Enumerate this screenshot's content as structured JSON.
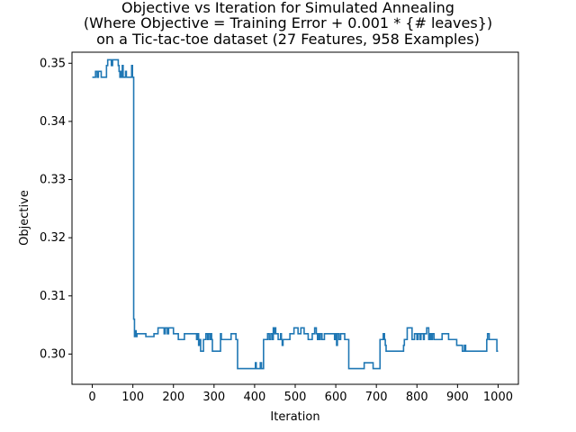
{
  "chart_data": {
    "type": "line",
    "title_lines": [
      "Objective vs Iteration for Simulated Annealing",
      "(Where Objective = Training Error + 0.001 * {# leaves})",
      "on a Tic-tac-toe dataset (27 Features, 958 Examples)"
    ],
    "xlabel": "Iteration",
    "ylabel": "Objective",
    "xlim": [
      -50,
      1050
    ],
    "ylim": [
      0.2948,
      0.3519
    ],
    "xticks": [
      0,
      100,
      200,
      300,
      400,
      500,
      600,
      700,
      800,
      900,
      1000
    ],
    "yticks": [
      0.3,
      0.31,
      0.32,
      0.33,
      0.34,
      0.35
    ],
    "ytick_labels": [
      "0.30",
      "0.31",
      "0.32",
      "0.33",
      "0.34",
      "0.35"
    ],
    "grid": false,
    "line_color": "#1f77b4",
    "series": [
      {
        "points": [
          [
            0,
            0.3476
          ],
          [
            5,
            0.3476
          ],
          [
            8,
            0.3486
          ],
          [
            12,
            0.3476
          ],
          [
            15,
            0.3486
          ],
          [
            20,
            0.3486
          ],
          [
            22,
            0.3476
          ],
          [
            33,
            0.3476
          ],
          [
            35,
            0.3496
          ],
          [
            38,
            0.3506
          ],
          [
            45,
            0.3506
          ],
          [
            47,
            0.3496
          ],
          [
            50,
            0.3506
          ],
          [
            62,
            0.3506
          ],
          [
            64,
            0.3496
          ],
          [
            66,
            0.3486
          ],
          [
            68,
            0.3476
          ],
          [
            70,
            0.3486
          ],
          [
            72,
            0.3476
          ],
          [
            74,
            0.3496
          ],
          [
            76,
            0.3476
          ],
          [
            80,
            0.3476
          ],
          [
            82,
            0.3486
          ],
          [
            84,
            0.3476
          ],
          [
            95,
            0.3476
          ],
          [
            97,
            0.3496
          ],
          [
            99,
            0.3476
          ],
          [
            101,
            0.3476
          ],
          [
            102,
            0.306
          ],
          [
            104,
            0.303
          ],
          [
            106,
            0.304
          ],
          [
            108,
            0.303
          ],
          [
            110,
            0.3035
          ],
          [
            130,
            0.3035
          ],
          [
            132,
            0.303
          ],
          [
            150,
            0.303
          ],
          [
            152,
            0.3035
          ],
          [
            160,
            0.3035
          ],
          [
            162,
            0.3045
          ],
          [
            175,
            0.3045
          ],
          [
            177,
            0.3035
          ],
          [
            180,
            0.3045
          ],
          [
            185,
            0.3035
          ],
          [
            188,
            0.3045
          ],
          [
            198,
            0.3045
          ],
          [
            200,
            0.3035
          ],
          [
            210,
            0.3035
          ],
          [
            212,
            0.3025
          ],
          [
            225,
            0.3025
          ],
          [
            227,
            0.3035
          ],
          [
            255,
            0.3035
          ],
          [
            257,
            0.3025
          ],
          [
            260,
            0.3035
          ],
          [
            262,
            0.3015
          ],
          [
            265,
            0.3025
          ],
          [
            267,
            0.3005
          ],
          [
            272,
            0.3005
          ],
          [
            274,
            0.3025
          ],
          [
            278,
            0.3025
          ],
          [
            280,
            0.3035
          ],
          [
            284,
            0.3025
          ],
          [
            286,
            0.3035
          ],
          [
            290,
            0.3025
          ],
          [
            292,
            0.3035
          ],
          [
            294,
            0.3025
          ],
          [
            296,
            0.3005
          ],
          [
            314,
            0.3005
          ],
          [
            316,
            0.3035
          ],
          [
            318,
            0.3025
          ],
          [
            340,
            0.3025
          ],
          [
            342,
            0.3035
          ],
          [
            352,
            0.3035
          ],
          [
            354,
            0.3025
          ],
          [
            358,
            0.2975
          ],
          [
            400,
            0.2975
          ],
          [
            402,
            0.2985
          ],
          [
            404,
            0.2975
          ],
          [
            412,
            0.2975
          ],
          [
            414,
            0.2985
          ],
          [
            417,
            0.2975
          ],
          [
            420,
            0.2975
          ],
          [
            422,
            0.3025
          ],
          [
            430,
            0.3025
          ],
          [
            432,
            0.3035
          ],
          [
            436,
            0.3025
          ],
          [
            440,
            0.3035
          ],
          [
            444,
            0.3025
          ],
          [
            446,
            0.3045
          ],
          [
            448,
            0.3035
          ],
          [
            450,
            0.3045
          ],
          [
            452,
            0.3035
          ],
          [
            456,
            0.3035
          ],
          [
            458,
            0.3025
          ],
          [
            462,
            0.3025
          ],
          [
            464,
            0.3035
          ],
          [
            466,
            0.3025
          ],
          [
            468,
            0.3015
          ],
          [
            470,
            0.3025
          ],
          [
            485,
            0.3025
          ],
          [
            487,
            0.3035
          ],
          [
            495,
            0.3035
          ],
          [
            497,
            0.3045
          ],
          [
            505,
            0.3045
          ],
          [
            507,
            0.3035
          ],
          [
            512,
            0.3035
          ],
          [
            514,
            0.3045
          ],
          [
            520,
            0.3045
          ],
          [
            522,
            0.3035
          ],
          [
            530,
            0.3035
          ],
          [
            532,
            0.3025
          ],
          [
            540,
            0.3025
          ],
          [
            542,
            0.3035
          ],
          [
            546,
            0.3035
          ],
          [
            548,
            0.3045
          ],
          [
            552,
            0.3035
          ],
          [
            555,
            0.3025
          ],
          [
            557,
            0.3035
          ],
          [
            560,
            0.3025
          ],
          [
            562,
            0.3035
          ],
          [
            566,
            0.3025
          ],
          [
            570,
            0.3025
          ],
          [
            572,
            0.3035
          ],
          [
            595,
            0.3035
          ],
          [
            597,
            0.3025
          ],
          [
            599,
            0.3035
          ],
          [
            602,
            0.3015
          ],
          [
            604,
            0.3035
          ],
          [
            608,
            0.3025
          ],
          [
            612,
            0.3035
          ],
          [
            620,
            0.3035
          ],
          [
            622,
            0.3025
          ],
          [
            630,
            0.3025
          ],
          [
            632,
            0.2975
          ],
          [
            668,
            0.2975
          ],
          [
            670,
            0.2985
          ],
          [
            690,
            0.2985
          ],
          [
            692,
            0.2975
          ],
          [
            707,
            0.2975
          ],
          [
            709,
            0.3025
          ],
          [
            715,
            0.3025
          ],
          [
            717,
            0.3035
          ],
          [
            720,
            0.3025
          ],
          [
            722,
            0.3015
          ],
          [
            724,
            0.3005
          ],
          [
            765,
            0.3005
          ],
          [
            767,
            0.3015
          ],
          [
            769,
            0.3025
          ],
          [
            774,
            0.3025
          ],
          [
            776,
            0.3045
          ],
          [
            786,
            0.3045
          ],
          [
            788,
            0.3025
          ],
          [
            792,
            0.3025
          ],
          [
            794,
            0.3035
          ],
          [
            798,
            0.3035
          ],
          [
            800,
            0.3025
          ],
          [
            803,
            0.3035
          ],
          [
            808,
            0.3025
          ],
          [
            810,
            0.3035
          ],
          [
            814,
            0.3035
          ],
          [
            816,
            0.3025
          ],
          [
            818,
            0.3035
          ],
          [
            822,
            0.3035
          ],
          [
            824,
            0.3045
          ],
          [
            827,
            0.3045
          ],
          [
            829,
            0.3025
          ],
          [
            832,
            0.3035
          ],
          [
            835,
            0.3025
          ],
          [
            838,
            0.3035
          ],
          [
            842,
            0.3025
          ],
          [
            860,
            0.3025
          ],
          [
            862,
            0.3035
          ],
          [
            876,
            0.3035
          ],
          [
            878,
            0.3025
          ],
          [
            896,
            0.3025
          ],
          [
            898,
            0.3015
          ],
          [
            910,
            0.3015
          ],
          [
            912,
            0.3005
          ],
          [
            915,
            0.3005
          ],
          [
            917,
            0.3015
          ],
          [
            920,
            0.3005
          ],
          [
            970,
            0.3005
          ],
          [
            972,
            0.3025
          ],
          [
            974,
            0.3035
          ],
          [
            978,
            0.3025
          ],
          [
            995,
            0.3025
          ],
          [
            997,
            0.3005
          ],
          [
            1000,
            0.3005
          ]
        ]
      }
    ]
  }
}
